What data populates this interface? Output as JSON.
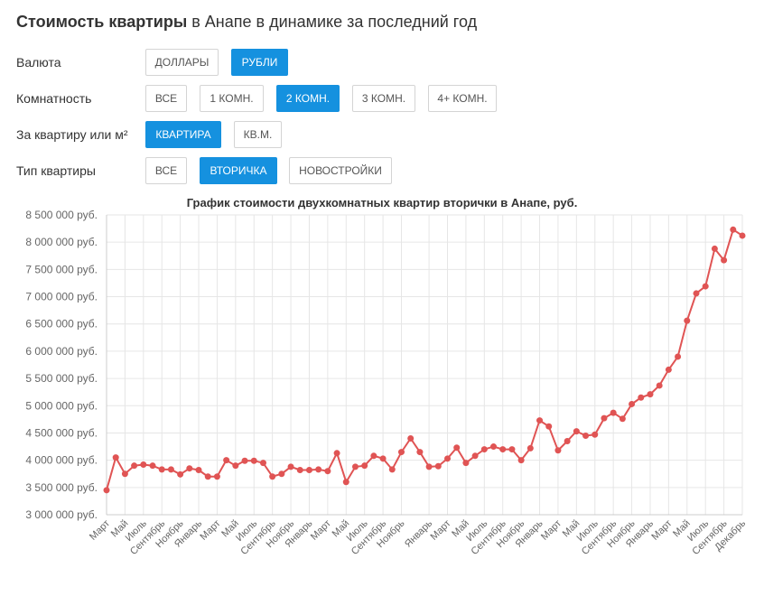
{
  "page": {
    "title_bold": "Стоимость квартиры",
    "title_rest": " в Анапе в динамике за последний год"
  },
  "filters": [
    {
      "label": "Валюта",
      "options": [
        {
          "text": "ДОЛЛАРЫ",
          "active": false
        },
        {
          "text": "РУБЛИ",
          "active": true
        }
      ]
    },
    {
      "label": "Комнатность",
      "options": [
        {
          "text": "ВСЕ",
          "active": false
        },
        {
          "text": "1 КОМН.",
          "active": false
        },
        {
          "text": "2 КОМН.",
          "active": true
        },
        {
          "text": "3 КОМН.",
          "active": false
        },
        {
          "text": "4+ КОМН.",
          "active": false
        }
      ]
    },
    {
      "label": "За квартиру или м²",
      "options": [
        {
          "text": "КВАРТИРА",
          "active": true
        },
        {
          "text": "КВ.М.",
          "active": false
        }
      ]
    },
    {
      "label": "Тип квартиры",
      "options": [
        {
          "text": "ВСЕ",
          "active": false
        },
        {
          "text": "ВТОРИЧКА",
          "active": true
        },
        {
          "text": "НОВОСТРОЙКИ",
          "active": false
        }
      ]
    }
  ],
  "colors": {
    "accent": "#1591df",
    "line": "#e05454",
    "grid": "#e6e6e6"
  },
  "chart_data": {
    "type": "line",
    "title": "График стоимости двухкомнатных квартир вторички в Анапе, руб.",
    "ylim": [
      3000000,
      8500000
    ],
    "yticks": [
      3000000,
      3500000,
      4000000,
      4500000,
      5000000,
      5500000,
      6000000,
      6500000,
      7000000,
      7500000,
      8000000,
      8500000
    ],
    "ytick_labels": [
      "3 000 000 руб.",
      "3 500 000 руб.",
      "4 000 000 руб.",
      "4 500 000 руб.",
      "5 000 000 руб.",
      "5 500 000 руб.",
      "6 000 000 руб.",
      "6 500 000 руб.",
      "7 000 000 руб.",
      "7 500 000 руб.",
      "8 000 000 руб.",
      "8 500 000 руб."
    ],
    "grid": true,
    "x_tick_labels": [
      "Март",
      "Май",
      "Июль",
      "Сентябрь",
      "Ноябрь",
      "Январь",
      "Март",
      "Май",
      "Июль",
      "Сентябрь",
      "Ноябрь",
      "Январь",
      "Март",
      "Май",
      "Июль",
      "Сентябрь",
      "Ноябрь",
      "Январь",
      "Март",
      "Май",
      "Июль",
      "Сентябрь",
      "Ноябрь",
      "Январь",
      "Март",
      "Май",
      "Июль",
      "Сентябрь",
      "Ноябрь",
      "Январь",
      "Март",
      "Май",
      "Июль",
      "Сентябрь",
      "Декабрь"
    ],
    "series": [
      {
        "values": [
          3450000,
          4050000,
          3750000,
          3900000,
          3920000,
          3900000,
          3830000,
          3830000,
          3740000,
          3850000,
          3820000,
          3700000,
          3700000,
          4000000,
          3900000,
          3990000,
          3990000,
          3950000,
          3700000,
          3750000,
          3880000,
          3820000,
          3820000,
          3830000,
          3800000,
          4130000,
          3600000,
          3880000,
          3900000,
          4080000,
          4030000,
          3830000,
          4150000,
          4400000,
          4150000,
          3880000,
          3890000,
          4030000,
          4230000,
          3950000,
          4080000,
          4200000,
          4250000,
          4200000,
          4200000,
          4000000,
          4220000,
          4730000,
          4620000,
          4180000,
          4350000,
          4530000,
          4450000,
          4470000,
          4770000,
          4870000,
          4760000,
          5030000,
          5150000,
          5210000,
          5370000,
          5660000,
          5900000,
          6560000,
          7060000,
          7190000,
          7880000,
          7670000,
          8230000,
          8120000
        ]
      }
    ]
  }
}
